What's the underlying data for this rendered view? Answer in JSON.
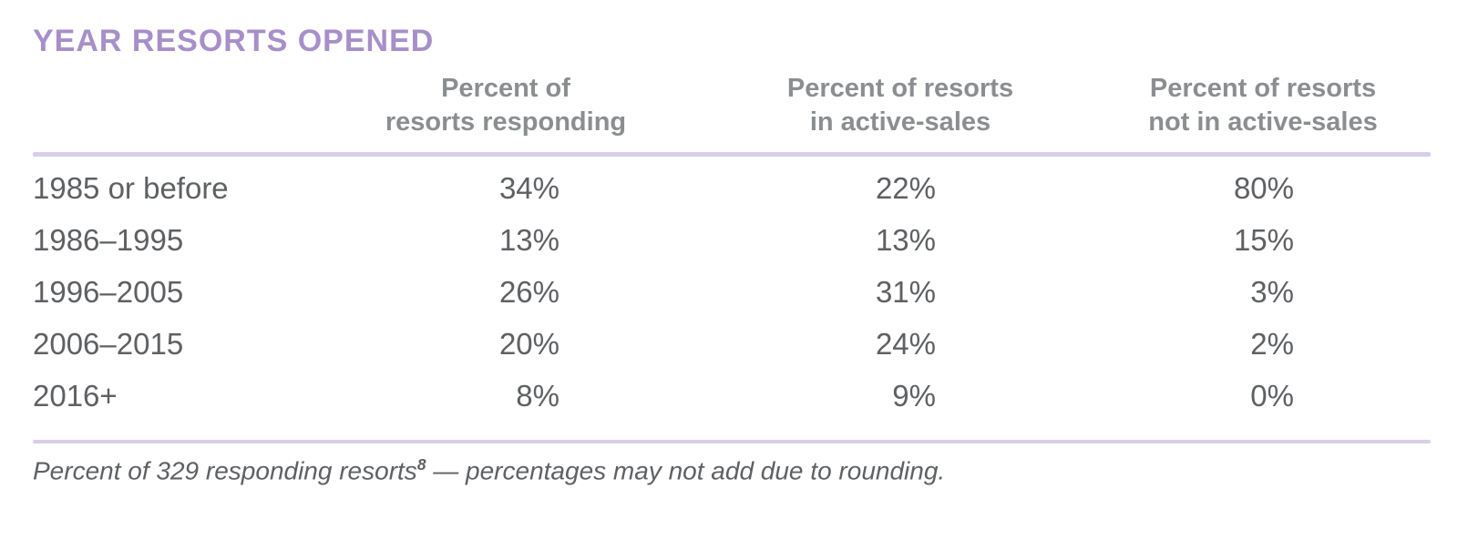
{
  "title": "YEAR RESORTS OPENED",
  "table": {
    "headers": [
      {
        "line1": "Percent of",
        "line2": "resorts responding"
      },
      {
        "line1": "Percent of resorts",
        "line2": "in active-sales"
      },
      {
        "line1": "Percent of resorts",
        "line2": "not in active-sales"
      }
    ],
    "rows": [
      {
        "label": "1985 or before",
        "values": [
          "34%",
          "22%",
          "80%"
        ]
      },
      {
        "label": "1986–1995",
        "values": [
          "13%",
          "13%",
          "15%"
        ]
      },
      {
        "label": "1996–2005",
        "values": [
          "26%",
          "31%",
          "3%"
        ]
      },
      {
        "label": "2006–2015",
        "values": [
          "20%",
          "24%",
          "2%"
        ]
      },
      {
        "label": "2016+",
        "values": [
          "8%",
          "9%",
          "0%"
        ]
      }
    ]
  },
  "footnote": {
    "text_before_sup": "Percent of 329 responding resorts",
    "sup": "8",
    "text_after_sup": " — percentages may not add due to rounding."
  },
  "colors": {
    "title_purple": "#a78fc9",
    "rule_lavender": "#d9cdea",
    "header_gray": "#8b8e91",
    "body_gray": "#5e6063"
  },
  "chart_data": {
    "type": "table",
    "title": "YEAR RESORTS OPENED",
    "categories": [
      "1985 or before",
      "1986–1995",
      "1996–2005",
      "2006–2015",
      "2016+"
    ],
    "series": [
      {
        "name": "Percent of resorts responding",
        "values": [
          34,
          13,
          26,
          20,
          8
        ]
      },
      {
        "name": "Percent of resorts in active-sales",
        "values": [
          22,
          13,
          31,
          24,
          9
        ]
      },
      {
        "name": "Percent of resorts not in active-sales",
        "values": [
          80,
          15,
          3,
          2,
          0
        ]
      }
    ],
    "unit": "%",
    "footnote": "Percent of 329 responding resorts⁸ — percentages may not add due to rounding."
  }
}
